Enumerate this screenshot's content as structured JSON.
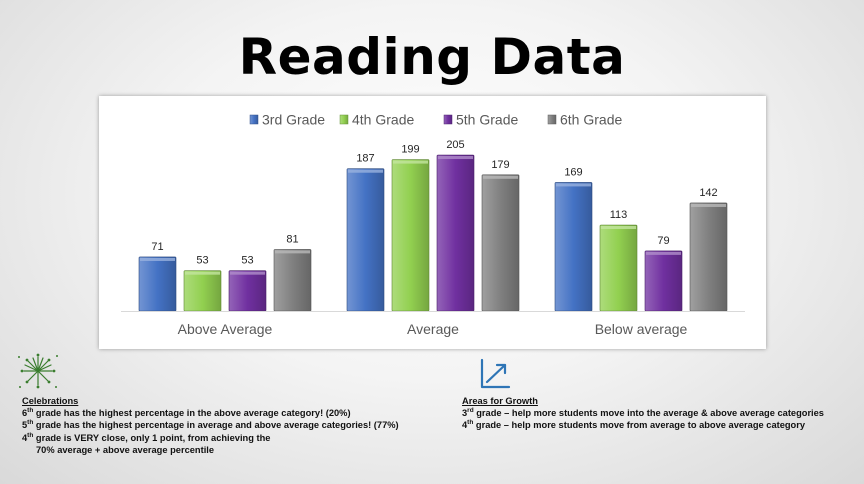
{
  "title": "Reading Data",
  "colors": {
    "3rd Grade": "#4472C4",
    "4th Grade": "#92D050",
    "5th Grade": "#7030A0",
    "6th Grade": "#808080"
  },
  "chart_data": {
    "type": "bar",
    "categories": [
      "Above Average",
      "Average",
      "Below average"
    ],
    "series": [
      {
        "name": "3rd Grade",
        "values": [
          71,
          187,
          169
        ]
      },
      {
        "name": "4th Grade",
        "values": [
          53,
          199,
          113
        ]
      },
      {
        "name": "5th Grade",
        "values": [
          53,
          205,
          79
        ]
      },
      {
        "name": "6th Grade",
        "values": [
          81,
          179,
          142
        ]
      }
    ],
    "legend_position": "top",
    "grid": false,
    "ylim": [
      0,
      230
    ]
  },
  "celebrations": {
    "heading": "Celebrations",
    "line1_ord": "6",
    "line1_sup": "th",
    "line1_text": " grade has the highest percentage in the above average category! (20%)",
    "line2_ord": "5",
    "line2_sup": "th",
    "line2_text": " grade has the highest percentage in average and above average categories! (77%)",
    "line3_ord": "4",
    "line3_sup": "th",
    "line3_text": " grade is VERY close, only 1 point, from achieving the",
    "line4_text": "70% average + above average percentile"
  },
  "growth": {
    "heading": "Areas for Growth",
    "line1_ord": "3",
    "line1_sup": "rd",
    "line1_text": " grade – help more students move into the average & above average categories",
    "line2_ord": "4",
    "line2_sup": "th",
    "line2_text": " grade – help more students move from average to above average category"
  },
  "icons": {
    "celebrations": "fireworks-icon",
    "growth": "line-chart-growth-icon"
  }
}
